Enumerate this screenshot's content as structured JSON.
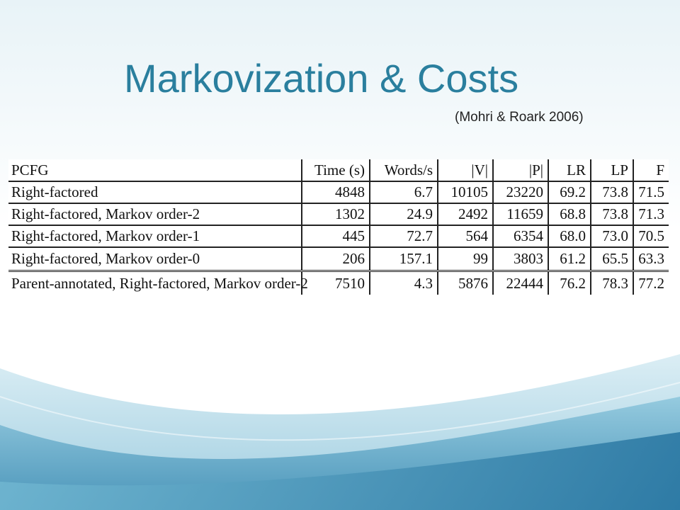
{
  "slide": {
    "title": "Markovization & Costs",
    "citation": "(Mohri & Roark 2006)"
  },
  "table": {
    "columns": [
      "PCFG",
      "Time (s)",
      "Words/s",
      "|V|",
      "|P|",
      "LR",
      "LP",
      "F"
    ],
    "rows": [
      [
        "Right-factored",
        "4848",
        "6.7",
        "10105",
        "23220",
        "69.2",
        "73.8",
        "71.5"
      ],
      [
        "Right-factored, Markov order-2",
        "1302",
        "24.9",
        "2492",
        "11659",
        "68.8",
        "73.8",
        "71.3"
      ],
      [
        "Right-factored, Markov order-1",
        "445",
        "72.7",
        "564",
        "6354",
        "68.0",
        "73.0",
        "70.5"
      ],
      [
        "Right-factored, Markov order-0",
        "206",
        "157.1",
        "99",
        "3803",
        "61.2",
        "65.5",
        "63.3"
      ],
      [
        "Parent-annotated, Right-factored, Markov order-2",
        "7510",
        "4.3",
        "5876",
        "22444",
        "76.2",
        "78.3",
        "77.2"
      ]
    ]
  },
  "theme": {
    "title_color": "#2a7f9e",
    "wave_colors": [
      "#e8f3f7",
      "#b5dbe8",
      "#5fa9c8",
      "#2f7fa8"
    ]
  }
}
